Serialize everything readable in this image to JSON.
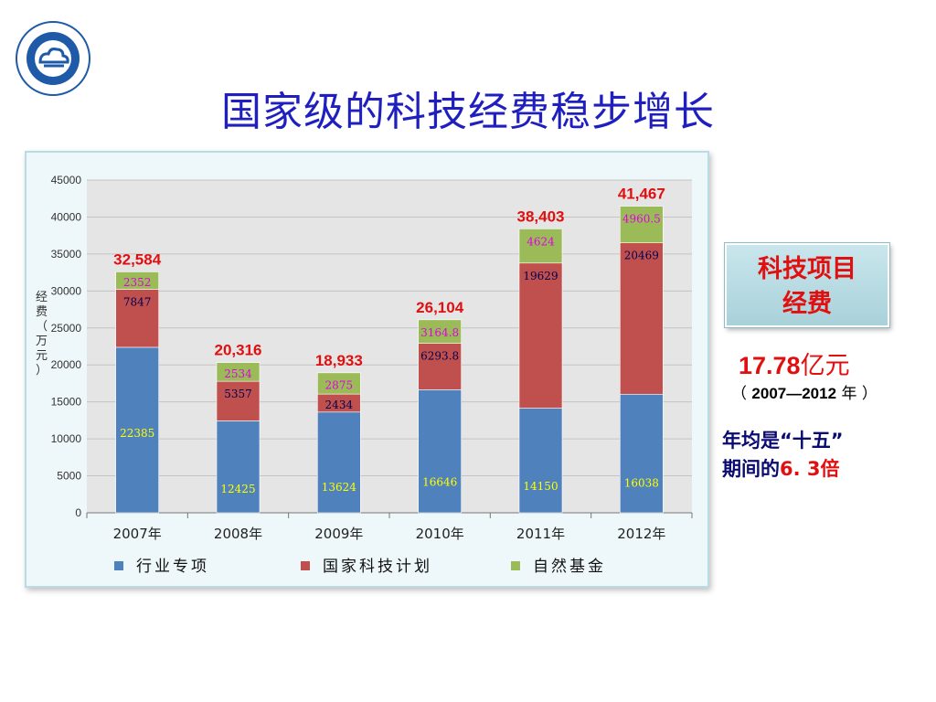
{
  "slide": {
    "title": "国家级的科技经费稳步增长"
  },
  "side_panel": {
    "box_line1": "科技项目",
    "box_line2": "经费",
    "total_number": "17.78",
    "total_unit": "亿元",
    "period_open": "（ ",
    "period_range": "2007—2012",
    "period_close": " 年 ）",
    "note_line1": "年均是“十五”",
    "note_line2_prefix": "期间的",
    "note_line2_value": "6. 3倍"
  },
  "chart_data": {
    "type": "bar",
    "stacked": true,
    "categories": [
      "2007年",
      "2008年",
      "2009年",
      "2010年",
      "2011年",
      "2012年"
    ],
    "series": [
      {
        "name": "行业专项",
        "color": "#4f81bd",
        "values": [
          22385,
          12425,
          13624,
          16646,
          14150,
          16038
        ],
        "labels": [
          "22385",
          "12425",
          "13624",
          "16646",
          "14150",
          "16038"
        ]
      },
      {
        "name": "国家科技计划",
        "color": "#c0504d",
        "values": [
          7847,
          5357,
          2434,
          6293.8,
          19629,
          20469
        ],
        "labels": [
          "7847",
          "5357",
          "2434",
          "6293.8",
          "19629",
          "20469"
        ]
      },
      {
        "name": "自然基金",
        "color": "#9bbb59",
        "values": [
          2352,
          2534,
          2875,
          3164.8,
          4624,
          4960.5
        ],
        "labels": [
          "2352",
          "2534",
          "2875",
          "3164.8",
          "4624",
          "4960.5"
        ]
      }
    ],
    "totals": [
      "32,584",
      "20,316",
      "18,933",
      "26,104",
      "38,403",
      "41,467"
    ],
    "ylabel": "经费（万元）",
    "ylim": [
      0,
      45000
    ],
    "yticks": [
      "0",
      "5000",
      "10000",
      "15000",
      "20000",
      "25000",
      "30000",
      "35000",
      "40000",
      "45000"
    ],
    "grid": true,
    "legend_position": "bottom",
    "total_label_color": "#e01010"
  }
}
